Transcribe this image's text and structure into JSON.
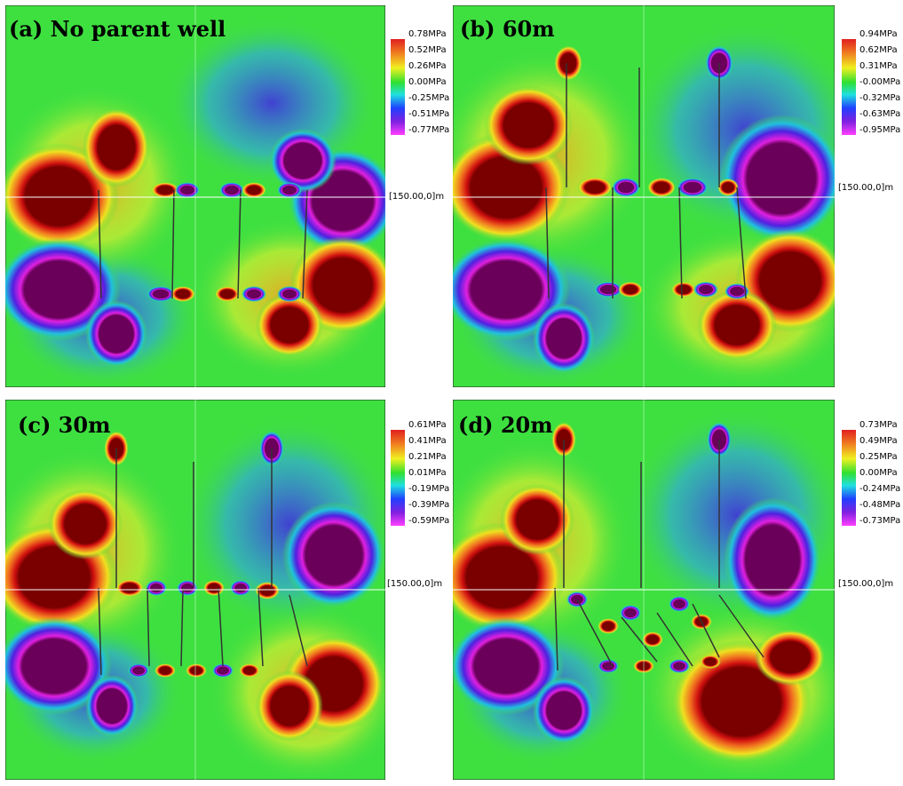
{
  "panels": [
    {
      "label": "(a) No parent well",
      "legend": [
        "0.78MPa",
        "0.52MPa",
        "0.26MPa",
        "0.00MPa",
        "-0.25MPa",
        "-0.51MPa",
        "-0.77MPa"
      ],
      "coord": "[150.00,0]m"
    },
    {
      "label": "(b) 60m",
      "legend": [
        "0.94MPa",
        "0.62MPa",
        "0.31MPa",
        "-0.00MPa",
        "-0.32MPa",
        "-0.63MPa",
        "-0.95MPa"
      ],
      "coord": "[150.00,0]m"
    },
    {
      "label": "(c) 30m",
      "legend": [
        "0.61MPa",
        "0.41MPa",
        "0.21MPa",
        "0.01MPa",
        "-0.19MPa",
        "-0.39MPa",
        "-0.59MPa"
      ],
      "coord": "[150.00,0]m"
    },
    {
      "label": "(d) 20m",
      "legend": [
        "0.73MPa",
        "0.49MPa",
        "0.25MPa",
        "0.00MPa",
        "-0.24MPa",
        "-0.48MPa",
        "-0.73MPa"
      ],
      "coord": "[150.00,0]m"
    }
  ]
}
